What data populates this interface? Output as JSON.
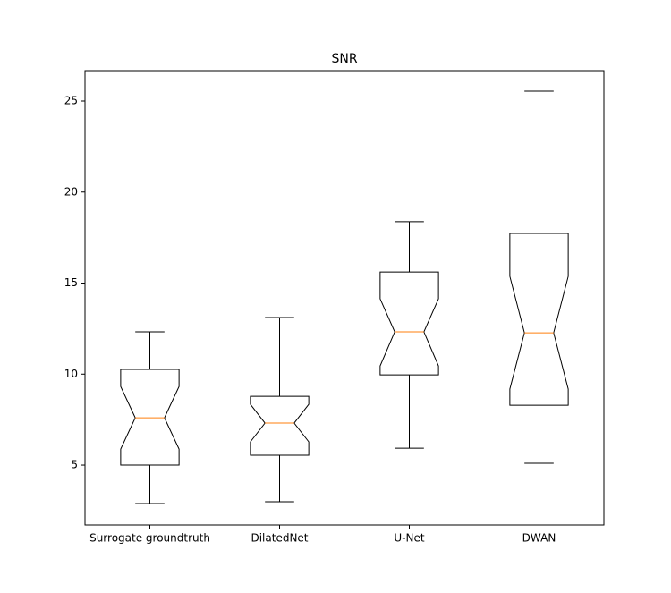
{
  "chart_data": {
    "type": "boxplot",
    "title": "SNR",
    "categories": [
      "Surrogate groundtruth",
      "DilatedNet",
      "U-Net",
      "DWAN"
    ],
    "boxes": [
      {
        "whislo": 2.89,
        "q1": 5.0,
        "notch_lo": 5.88,
        "med": 7.6,
        "notch_hi": 9.32,
        "q3": 10.26,
        "whishi": 12.32
      },
      {
        "whislo": 2.99,
        "q1": 5.54,
        "notch_lo": 6.28,
        "med": 7.31,
        "notch_hi": 8.34,
        "q3": 8.78,
        "whishi": 13.11
      },
      {
        "whislo": 5.93,
        "q1": 9.96,
        "notch_lo": 10.45,
        "med": 12.32,
        "notch_hi": 14.14,
        "q3": 15.61,
        "whishi": 18.37
      },
      {
        "whislo": 5.1,
        "q1": 8.29,
        "notch_lo": 9.18,
        "med": 12.27,
        "notch_hi": 15.37,
        "q3": 17.73,
        "whishi": 25.54
      }
    ],
    "box_color": "#000000",
    "median_color": "#ff7f0e",
    "ylim": [
      1.71,
      26.67
    ],
    "yticks": [
      5,
      10,
      15,
      20,
      25
    ]
  }
}
